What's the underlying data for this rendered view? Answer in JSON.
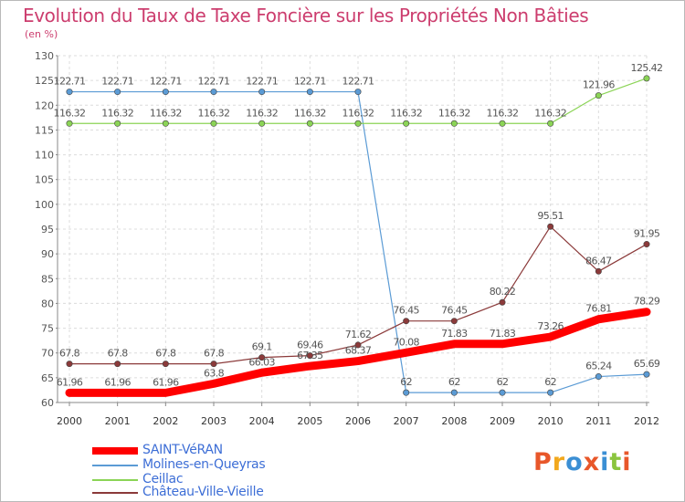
{
  "title": "Evolution du Taux de Taxe Foncière sur les Propriétés Non Bâties",
  "unit": "(en %)",
  "logo": {
    "text": "Proxiti",
    "colors": [
      "#e8572a",
      "#f2a81d",
      "#3b8fd4",
      "#e8572a",
      "#3b8fd4",
      "#8bc53f",
      "#e8572a"
    ]
  },
  "chart_data": {
    "type": "line",
    "title": "Evolution du Taux de Taxe Foncière sur les Propriétés Non Bâties",
    "ylabel": "(en %)",
    "xlabel": "",
    "ylim": [
      60,
      130
    ],
    "yticks": [
      "60",
      "65",
      "70",
      "75",
      "80",
      "85",
      "90",
      "95",
      "100",
      "105",
      "110",
      "115",
      "120",
      "125",
      "130"
    ],
    "x": [
      "2000",
      "2001",
      "2002",
      "2003",
      "2004",
      "2005",
      "2006",
      "2007",
      "2008",
      "2009",
      "2010",
      "2011",
      "2012"
    ],
    "grid": true,
    "series": [
      {
        "name": "SAINT-VéRAN",
        "color": "#ff0000",
        "bold": true,
        "values": [
          61.96,
          61.96,
          61.96,
          63.8,
          66.03,
          67.35,
          68.37,
          70.08,
          71.83,
          71.83,
          73.26,
          76.81,
          78.29
        ],
        "labels": [
          "61.96",
          "61.96",
          "61.96",
          "63.8",
          "66.03",
          "67.35",
          "68.37",
          "70.08",
          "71.83",
          "71.83",
          "73.26",
          "76.81",
          "78.29"
        ]
      },
      {
        "name": "Molines-en-Queyras",
        "color": "#5b9bd5",
        "bold": false,
        "values": [
          122.71,
          122.71,
          122.71,
          122.71,
          122.71,
          122.71,
          122.71,
          62,
          62,
          62,
          62,
          65.24,
          65.69
        ],
        "labels": [
          "122.71",
          "122.71",
          "122.71",
          "122.71",
          "122.71",
          "122.71",
          "122.71",
          "62",
          "62",
          "62",
          "62",
          "65.24",
          "65.69"
        ]
      },
      {
        "name": "Ceillac",
        "color": "#8bd456",
        "bold": false,
        "values": [
          116.32,
          116.32,
          116.32,
          116.32,
          116.32,
          116.32,
          116.32,
          116.32,
          116.32,
          116.32,
          116.32,
          121.96,
          125.42
        ],
        "labels": [
          "116.32",
          "116.32",
          "116.32",
          "116.32",
          "116.32",
          "116.32",
          "116.32",
          "116.32",
          "116.32",
          "116.32",
          "116.32",
          "121.96",
          "125.42"
        ]
      },
      {
        "name": "Château-Ville-Vieille",
        "color": "#8b3a3a",
        "bold": false,
        "values": [
          67.8,
          67.8,
          67.8,
          67.8,
          69.1,
          69.46,
          71.62,
          76.45,
          76.45,
          80.22,
          95.51,
          86.47,
          91.95
        ],
        "labels": [
          "67.8",
          "67.8",
          "67.8",
          "67.8",
          "69.1",
          "69.46",
          "71.62",
          "76.45",
          "76.45",
          "80.22",
          "95.51",
          "86.47",
          "91.95"
        ]
      }
    ],
    "legend_position": "bottom-left"
  }
}
